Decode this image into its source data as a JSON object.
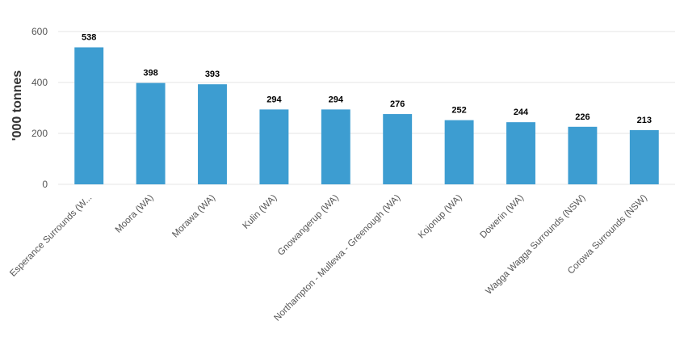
{
  "chart_data": {
    "type": "bar",
    "title": "",
    "xlabel": "",
    "ylabel": "'000 tonnes",
    "ylim": [
      0,
      600
    ],
    "yticks": [
      0,
      200,
      400,
      600
    ],
    "grid": true,
    "legend": "none",
    "bar_color": "#3d9dd1",
    "categories": [
      "Esperance Surrounds (W...",
      "Moora (WA)",
      "Morawa (WA)",
      "Kulin (WA)",
      "Gnowangerup (WA)",
      "Northampton - Mullewa - Greenough (WA)",
      "Kojonup (WA)",
      "Dowerin (WA)",
      "Wagga Wagga Surrounds (NSW)",
      "Corowa Surrounds (NSW)"
    ],
    "values": [
      538,
      398,
      393,
      294,
      294,
      276,
      252,
      244,
      226,
      213
    ]
  }
}
